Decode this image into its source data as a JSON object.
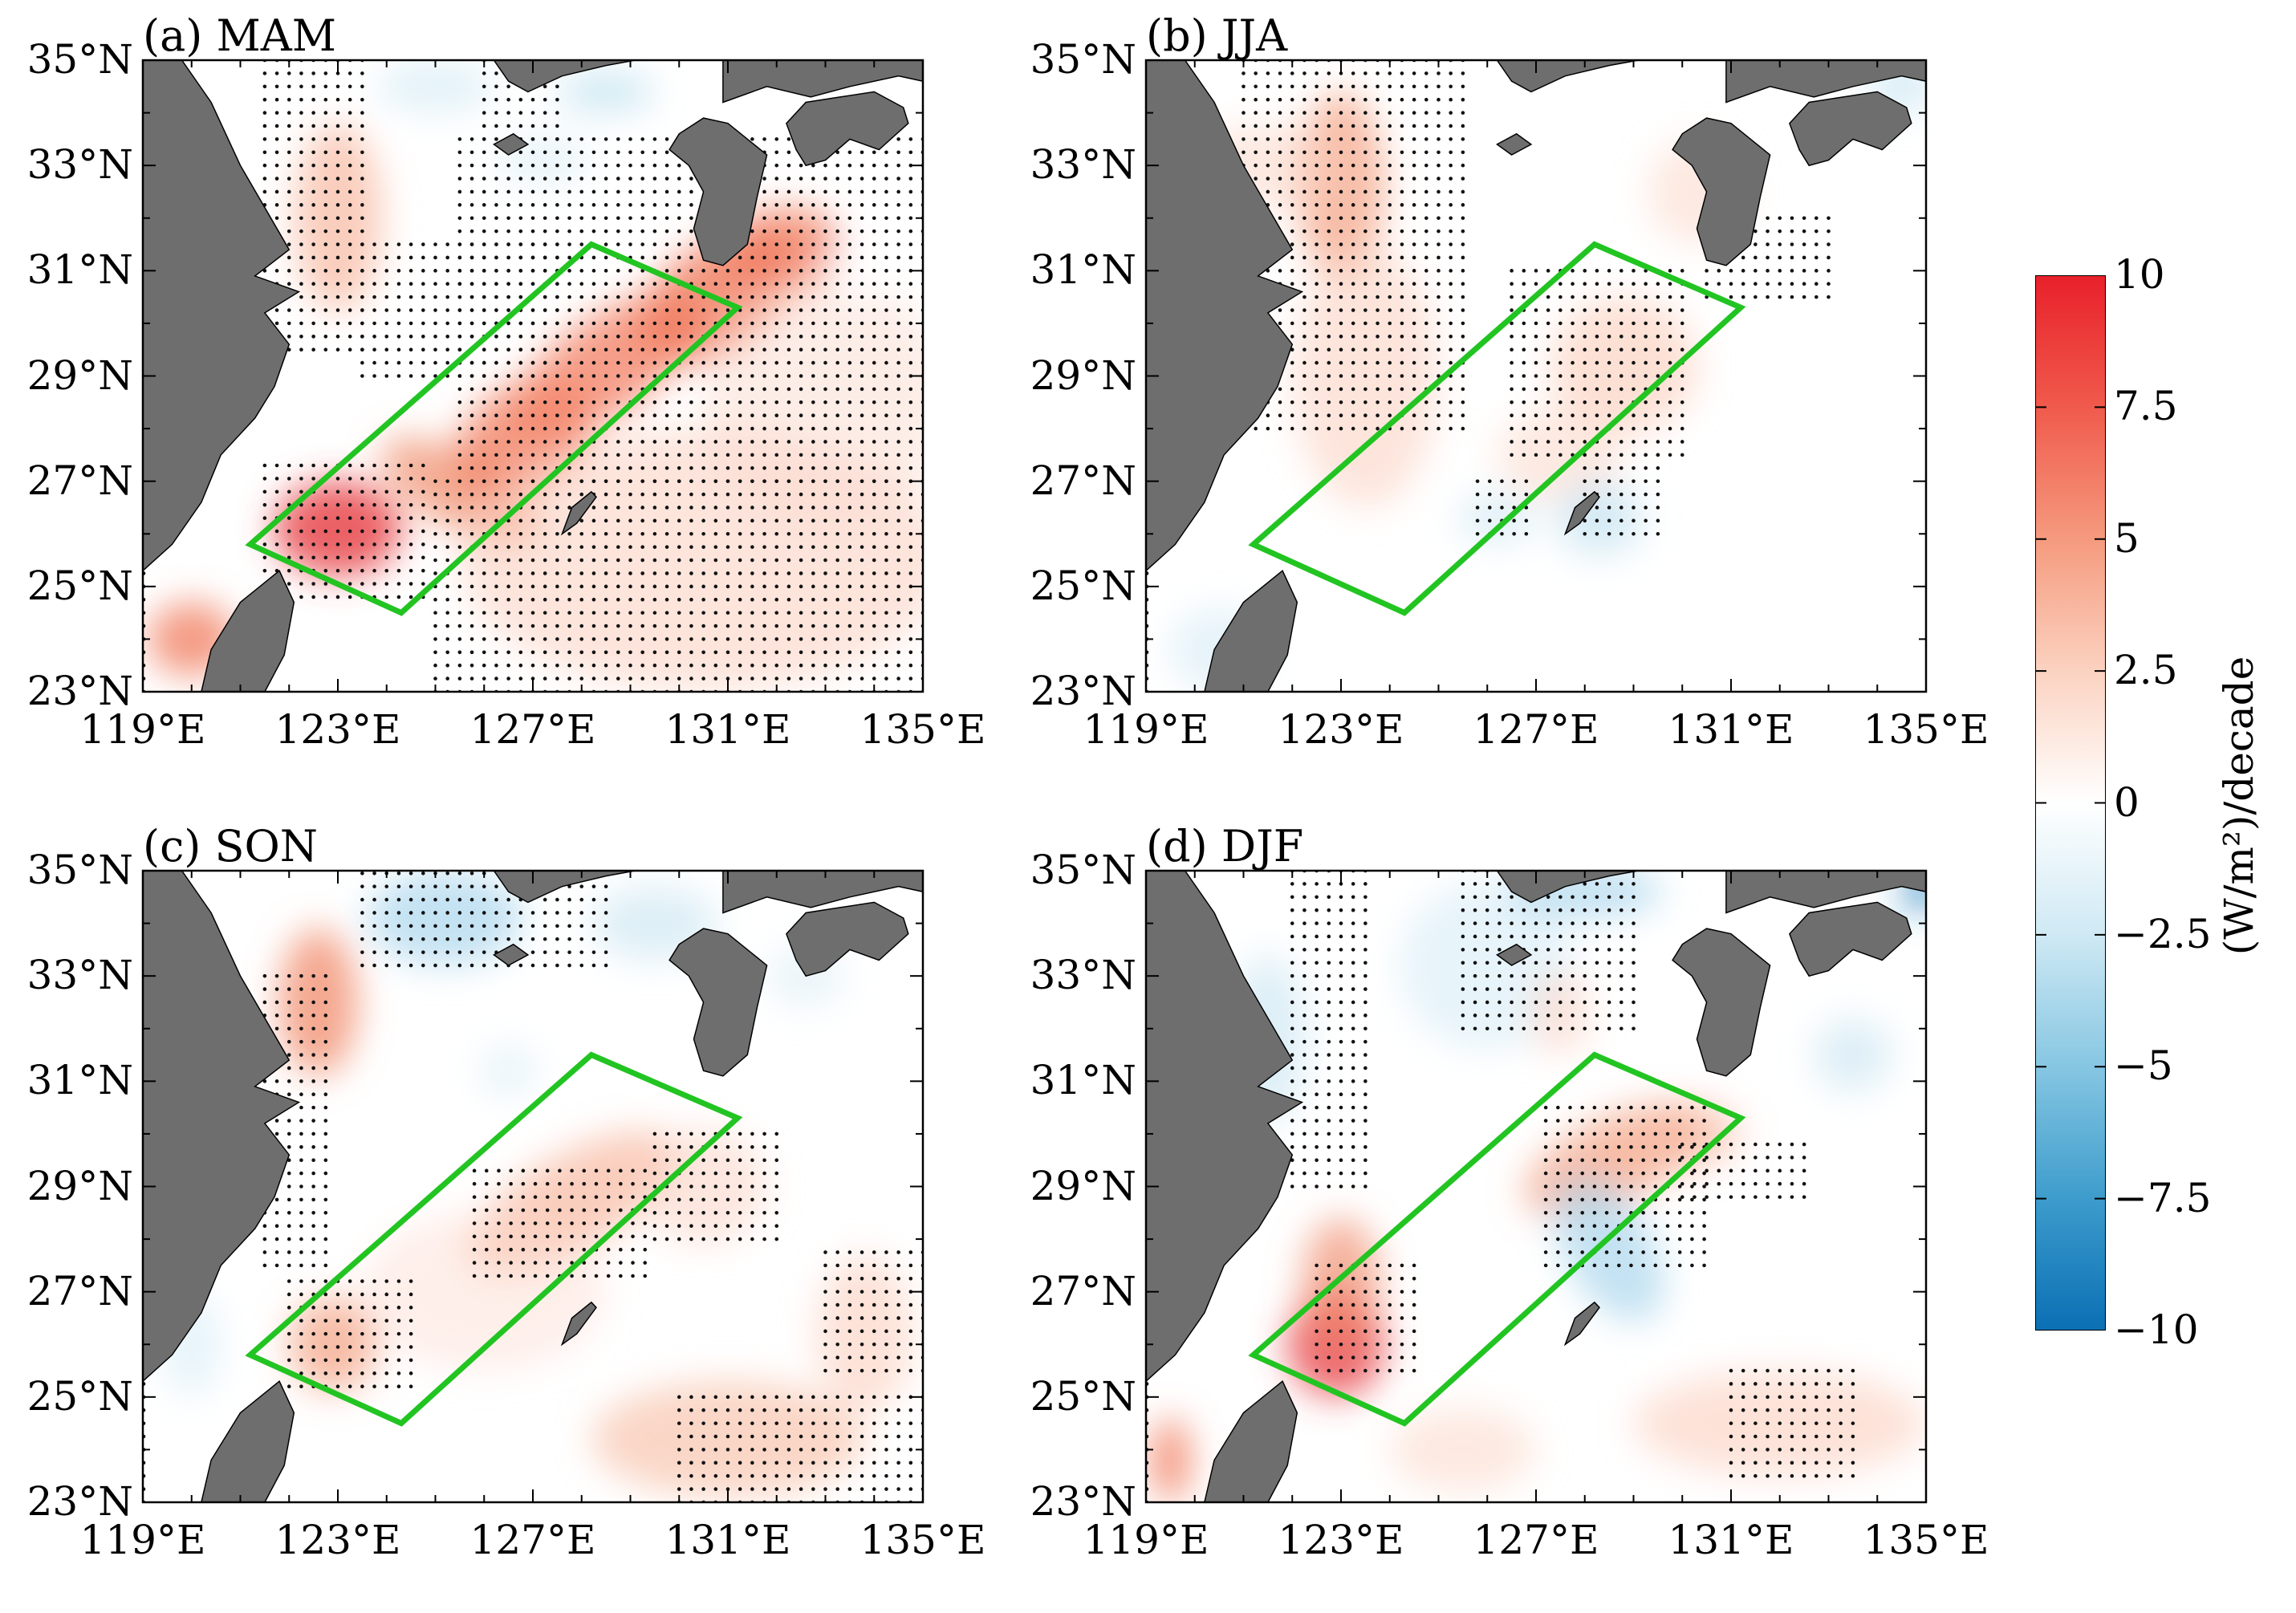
{
  "panels": [
    {
      "id": "a",
      "title": "(a) MAM"
    },
    {
      "id": "b",
      "title": "(b) JJA"
    },
    {
      "id": "c",
      "title": "(c) SON"
    },
    {
      "id": "d",
      "title": "(d) DJF"
    }
  ],
  "axes": {
    "lat_labels": [
      "35°N",
      "33°N",
      "31°N",
      "29°N",
      "27°N",
      "25°N",
      "23°N"
    ],
    "lon_labels": [
      "119°E",
      "123°E",
      "127°E",
      "131°E",
      "135°E"
    ],
    "lat_range": [
      23,
      35
    ],
    "lon_range": [
      119,
      135
    ]
  },
  "box_region": {
    "name": "analysis box",
    "color": "#22c422",
    "corners_lonlat": [
      [
        121.2,
        25.8
      ],
      [
        124.3,
        24.5
      ],
      [
        131.2,
        30.3
      ],
      [
        128.2,
        31.5
      ]
    ]
  },
  "colorbar": {
    "ticks": [
      "10",
      "7.5",
      "5",
      "2.5",
      "0",
      "−2.5",
      "−5",
      "−7.5",
      "−10"
    ],
    "min": -10,
    "max": 10,
    "label": "(W/m²)/decade",
    "colors": {
      "max": "#e8202a",
      "mid": "#ffffff",
      "min": "#0a6fb4"
    }
  },
  "land_color": "#6e6e6e",
  "colors": {
    "positive": "#f08a6a",
    "strong_positive": "#e8464a",
    "negative": "#8cc8e4",
    "strong_negative": "#1f7fbc",
    "box": "#22c422"
  }
}
